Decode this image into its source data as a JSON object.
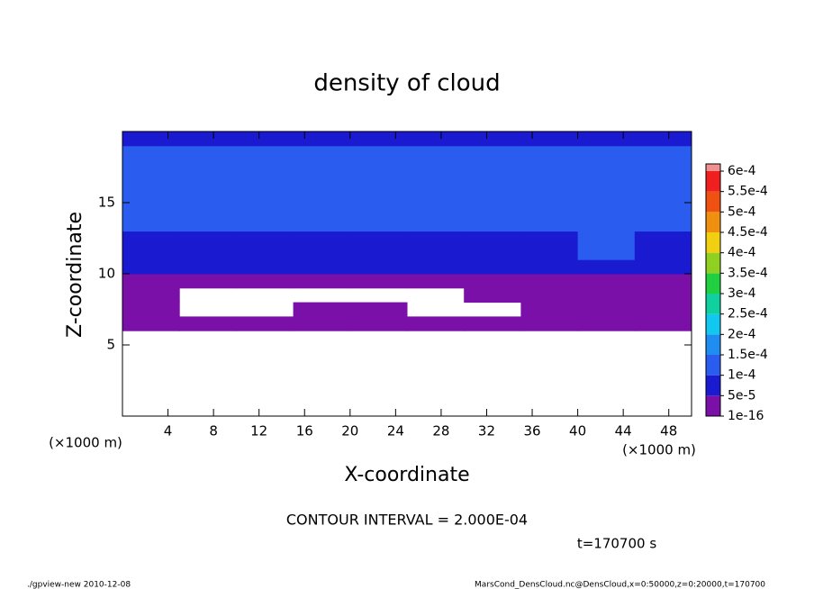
{
  "chart_data": {
    "type": "heatmap",
    "title": "density of cloud",
    "x_label": "X-coordinate",
    "y_label": "Z-coordinate",
    "x_unit": "(×1000 m)",
    "x_unit_right": "(×1000 m)",
    "xlim": [
      0,
      50
    ],
    "ylim": [
      0,
      20
    ],
    "xticks": [
      4,
      8,
      12,
      16,
      20,
      24,
      28,
      32,
      36,
      40,
      44,
      48
    ],
    "yticks": [
      5,
      10,
      15
    ],
    "x": [
      2.5,
      7.5,
      12.5,
      17.5,
      22.5,
      27.5,
      32.5,
      37.5,
      42.5,
      47.5
    ],
    "y": [
      0.5,
      1.5,
      2.5,
      3.5,
      4.5,
      5.5,
      6.5,
      7.5,
      8.5,
      9.5,
      10.5,
      11.5,
      12.5,
      13.5,
      14.5,
      15.5,
      16.5,
      17.5,
      18.5,
      19.5
    ],
    "values": [
      [
        null,
        null,
        null,
        null,
        null,
        null,
        null,
        null,
        null,
        null
      ],
      [
        null,
        null,
        null,
        null,
        null,
        null,
        null,
        null,
        null,
        null
      ],
      [
        null,
        null,
        null,
        null,
        null,
        null,
        null,
        null,
        null,
        null
      ],
      [
        null,
        null,
        null,
        null,
        null,
        null,
        null,
        null,
        null,
        null
      ],
      [
        null,
        null,
        null,
        null,
        null,
        null,
        null,
        null,
        null,
        null
      ],
      [
        null,
        null,
        null,
        null,
        null,
        null,
        null,
        null,
        null,
        null
      ],
      [
        1e-05,
        1e-05,
        1e-05,
        1e-05,
        1e-05,
        1e-05,
        1e-05,
        1e-05,
        1e-05,
        1e-05
      ],
      [
        1e-05,
        null,
        null,
        1e-05,
        1e-05,
        null,
        null,
        1e-05,
        1e-05,
        1e-05
      ],
      [
        1e-05,
        null,
        null,
        null,
        null,
        null,
        1e-05,
        1e-05,
        1e-05,
        1e-05
      ],
      [
        1e-05,
        1e-05,
        1e-05,
        1e-05,
        1e-05,
        1e-05,
        1e-05,
        1e-05,
        1e-05,
        1e-05
      ],
      [
        7e-05,
        7e-05,
        7e-05,
        7e-05,
        7e-05,
        7e-05,
        7e-05,
        7e-05,
        7e-05,
        7e-05
      ],
      [
        9e-05,
        9e-05,
        9e-05,
        9e-05,
        9e-05,
        9e-05,
        9e-05,
        9e-05,
        0.00013,
        9e-05
      ],
      [
        9e-05,
        9e-05,
        9e-05,
        9e-05,
        9e-05,
        9e-05,
        9e-05,
        9e-05,
        0.00013,
        9e-05
      ],
      [
        0.00013,
        0.00013,
        0.00011,
        0.00011,
        0.00011,
        0.00011,
        0.00011,
        0.00011,
        0.00013,
        0.00011
      ],
      [
        0.00013,
        0.00011,
        0.00011,
        0.00011,
        0.00011,
        0.00011,
        0.00011,
        0.00011,
        0.00011,
        0.00011
      ],
      [
        0.00011,
        0.00011,
        0.00011,
        0.00011,
        0.00011,
        0.00011,
        0.00011,
        0.00011,
        0.00011,
        0.00011
      ],
      [
        0.00011,
        0.00011,
        0.00011,
        0.00011,
        0.00011,
        0.00011,
        0.00011,
        0.00011,
        0.00011,
        0.00011
      ],
      [
        0.00011,
        0.00011,
        0.00011,
        0.00011,
        0.00011,
        0.00011,
        0.00011,
        0.00011,
        0.00011,
        0.00011
      ],
      [
        0.00011,
        0.00011,
        0.00011,
        0.00011,
        0.00011,
        0.00011,
        0.00011,
        0.00011,
        0.00011,
        0.00011
      ],
      [
        6e-05,
        6e-05,
        6e-05,
        6e-05,
        6e-05,
        6e-05,
        6e-05,
        6e-05,
        6e-05,
        6e-05
      ]
    ],
    "colorbar": {
      "levels": [
        {
          "value": 1e-16,
          "label": "1e-16"
        },
        {
          "value": 5e-05,
          "label": "5e-5"
        },
        {
          "value": 0.0001,
          "label": "1e-4"
        },
        {
          "value": 0.00015,
          "label": "1.5e-4"
        },
        {
          "value": 0.0002,
          "label": "2e-4"
        },
        {
          "value": 0.00025,
          "label": "2.5e-4"
        },
        {
          "value": 0.0003,
          "label": "3e-4"
        },
        {
          "value": 0.00035,
          "label": "3.5e-4"
        },
        {
          "value": 0.0004,
          "label": "4e-4"
        },
        {
          "value": 0.00045,
          "label": "4.5e-4"
        },
        {
          "value": 0.0005,
          "label": "5e-4"
        },
        {
          "value": 0.00055,
          "label": "5.5e-4"
        },
        {
          "value": 0.0006,
          "label": "6e-4"
        }
      ],
      "colors": [
        "#7a10a8",
        "#1a1ad0",
        "#2a5cf0",
        "#1e8cf0",
        "#10c8f0",
        "#10d0a0",
        "#20d040",
        "#90d020",
        "#f0d010",
        "#f09010",
        "#f05010",
        "#f02020",
        "#f09090"
      ]
    },
    "contour_interval": "CONTOUR INTERVAL = 2.000E-04",
    "time": "t=170700 s",
    "footer_left": "./gpview-new   2010-12-08",
    "footer_right": "MarsCond_DensCloud.nc@DensCloud,x=0:50000,z=0:20000,t=170700"
  }
}
